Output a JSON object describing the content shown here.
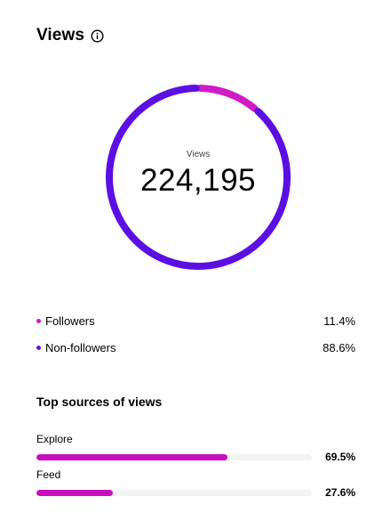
{
  "header": {
    "title": "Views",
    "info_icon": "info-icon"
  },
  "donut": {
    "center_label": "Views",
    "center_value": "224,195",
    "segments": [
      {
        "name": "Followers",
        "fraction": 0.114,
        "color": "#d21bc6"
      },
      {
        "name": "Non-followers",
        "fraction": 0.886,
        "color": "#5b0fe3"
      }
    ]
  },
  "legend": [
    {
      "label": "Followers",
      "value": "11.4%",
      "color": "#d21bc6"
    },
    {
      "label": "Non-followers",
      "value": "88.6%",
      "color": "#5b0fe3"
    }
  ],
  "sources": {
    "title": "Top sources of views",
    "items": [
      {
        "label": "Explore",
        "value": "69.5%",
        "fraction": 0.695,
        "color": "#c70fbe"
      },
      {
        "label": "Feed",
        "value": "27.6%",
        "fraction": 0.276,
        "color": "#c70fbe"
      }
    ]
  }
}
